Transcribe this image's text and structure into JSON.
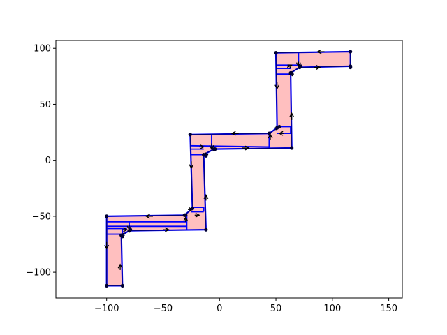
{
  "chart_data": {
    "type": "diagram",
    "title": "",
    "xlabel": "",
    "ylabel": "",
    "xlim": [
      -145,
      162
    ],
    "ylim": [
      -123,
      107
    ],
    "x_ticks": [
      -100,
      -50,
      0,
      50,
      100,
      150
    ],
    "y_ticks": [
      -100,
      -50,
      0,
      50,
      100
    ],
    "x_tick_labels": [
      "−100",
      "−50",
      "0",
      "50",
      "100",
      "150"
    ],
    "y_tick_labels": [
      "−100",
      "−50",
      "0",
      "50",
      "100"
    ],
    "polygon": [
      [
        -100,
        -112
      ],
      [
        -86,
        -112
      ],
      [
        -87,
        -67
      ],
      [
        -80,
        -63
      ],
      [
        -12,
        -62
      ],
      [
        -14,
        5
      ],
      [
        -5,
        10
      ],
      [
        64,
        11
      ],
      [
        63,
        78
      ],
      [
        71,
        83
      ],
      [
        116,
        84
      ],
      [
        116,
        97
      ],
      [
        50,
        96
      ],
      [
        51,
        29
      ],
      [
        44,
        24
      ],
      [
        -26,
        23
      ],
      [
        -24,
        -43
      ],
      [
        -31,
        -49
      ],
      [
        -100,
        -50
      ]
    ],
    "inner_lines": [
      [
        [
          -100,
          -55
        ],
        [
          -29,
          -55
        ]
      ],
      [
        [
          -100,
          -59
        ],
        [
          -29,
          -59
        ]
      ],
      [
        [
          -29,
          -49
        ],
        [
          -29,
          -62
        ]
      ],
      [
        [
          -100,
          -61
        ],
        [
          -82,
          -61
        ]
      ],
      [
        [
          -100,
          -66
        ],
        [
          -86,
          -66
        ]
      ],
      [
        [
          -80,
          -55
        ],
        [
          -80,
          -62
        ]
      ],
      [
        [
          -86,
          -61
        ],
        [
          -86,
          -66
        ]
      ],
      [
        [
          -26,
          13
        ],
        [
          44,
          12
        ]
      ],
      [
        [
          -26,
          10
        ],
        [
          -14,
          10
        ]
      ],
      [
        [
          -26,
          5
        ],
        [
          -14,
          5
        ]
      ],
      [
        [
          -7,
          23
        ],
        [
          -7,
          11
        ]
      ],
      [
        [
          44,
          24
        ],
        [
          44,
          11
        ]
      ],
      [
        [
          -25,
          -42
        ],
        [
          -14,
          -42
        ]
      ],
      [
        [
          -25,
          -46
        ],
        [
          -14,
          -46
        ]
      ],
      [
        [
          -14,
          -42
        ],
        [
          -14,
          -46
        ]
      ],
      [
        [
          51,
          85
        ],
        [
          70,
          85
        ]
      ],
      [
        [
          51,
          82
        ],
        [
          63,
          82
        ]
      ],
      [
        [
          51,
          77
        ],
        [
          63,
          77
        ]
      ],
      [
        [
          70,
          96
        ],
        [
          70,
          84
        ]
      ],
      [
        [
          51,
          30
        ],
        [
          63,
          30
        ]
      ],
      [
        [
          51,
          24
        ],
        [
          64,
          24
        ]
      ],
      [
        [
          63,
          30
        ],
        [
          63,
          24
        ]
      ]
    ],
    "nodes": [
      [
        -100,
        -112
      ],
      [
        -86,
        -112
      ],
      [
        -87,
        -67
      ],
      [
        -80,
        -63
      ],
      [
        -12,
        -62
      ],
      [
        -14,
        5
      ],
      [
        -5,
        10
      ],
      [
        64,
        11
      ],
      [
        63,
        78
      ],
      [
        71,
        83
      ],
      [
        116,
        84
      ],
      [
        116,
        97
      ],
      [
        50,
        96
      ],
      [
        51,
        29
      ],
      [
        44,
        24
      ],
      [
        -26,
        23
      ],
      [
        -24,
        -43
      ],
      [
        -31,
        -49
      ],
      [
        -100,
        -50
      ],
      [
        -86,
        -68
      ],
      [
        -79,
        -62
      ],
      [
        -30,
        -49
      ],
      [
        -12,
        4
      ],
      [
        -4,
        10
      ],
      [
        53,
        30
      ],
      [
        64,
        78
      ],
      [
        72,
        84
      ],
      [
        116,
        83
      ]
    ],
    "arrows": [
      {
        "from": [
          -88,
          -98
        ],
        "to": [
          -88,
          -93
        ]
      },
      {
        "from": [
          -100,
          -73
        ],
        "to": [
          -100,
          -79
        ]
      },
      {
        "from": [
          -84,
          -67
        ],
        "to": [
          -88,
          -67
        ]
      },
      {
        "from": [
          -86,
          -62
        ],
        "to": [
          -82,
          -62
        ]
      },
      {
        "from": [
          -50,
          -62
        ],
        "to": [
          -45,
          -62
        ]
      },
      {
        "from": [
          -80,
          -58
        ],
        "to": [
          -80,
          -62
        ]
      },
      {
        "from": [
          -59,
          -50
        ],
        "to": [
          -65,
          -50
        ]
      },
      {
        "from": [
          -30,
          -55
        ],
        "to": [
          -30,
          -51
        ]
      },
      {
        "from": [
          -28,
          -44
        ],
        "to": [
          -24,
          -44
        ]
      },
      {
        "from": [
          -22,
          -49
        ],
        "to": [
          -18,
          -49
        ]
      },
      {
        "from": [
          -12,
          -36
        ],
        "to": [
          -12,
          -31
        ]
      },
      {
        "from": [
          -25,
          -1
        ],
        "to": [
          -25,
          -7
        ]
      },
      {
        "from": [
          -18,
          12
        ],
        "to": [
          -14,
          12
        ]
      },
      {
        "from": [
          -10,
          5
        ],
        "to": [
          -15,
          5
        ]
      },
      {
        "from": [
          -7,
          15
        ],
        "to": [
          -7,
          10
        ]
      },
      {
        "from": [
          20,
          11
        ],
        "to": [
          26,
          11
        ]
      },
      {
        "from": [
          17,
          24
        ],
        "to": [
          11,
          24
        ]
      },
      {
        "from": [
          45,
          18
        ],
        "to": [
          45,
          23
        ]
      },
      {
        "from": [
          49,
          29
        ],
        "to": [
          53,
          29
        ]
      },
      {
        "from": [
          57,
          24
        ],
        "to": [
          53,
          24
        ]
      },
      {
        "from": [
          64,
          36
        ],
        "to": [
          64,
          42
        ]
      },
      {
        "from": [
          51,
          70
        ],
        "to": [
          51,
          64
        ]
      },
      {
        "from": [
          60,
          83
        ],
        "to": [
          64,
          85
        ]
      },
      {
        "from": [
          66,
          77
        ],
        "to": [
          62,
          77
        ]
      },
      {
        "from": [
          70,
          88
        ],
        "to": [
          70,
          84
        ]
      },
      {
        "from": [
          84,
          83
        ],
        "to": [
          89,
          83
        ]
      },
      {
        "from": [
          93,
          97
        ],
        "to": [
          87,
          97
        ]
      }
    ],
    "colors": {
      "fill": "#ffbfbf",
      "outline": "#000000",
      "inner_lines": "#0000ff",
      "nodes": "#000033",
      "arrows": "#000000",
      "axes": "#000000"
    }
  }
}
